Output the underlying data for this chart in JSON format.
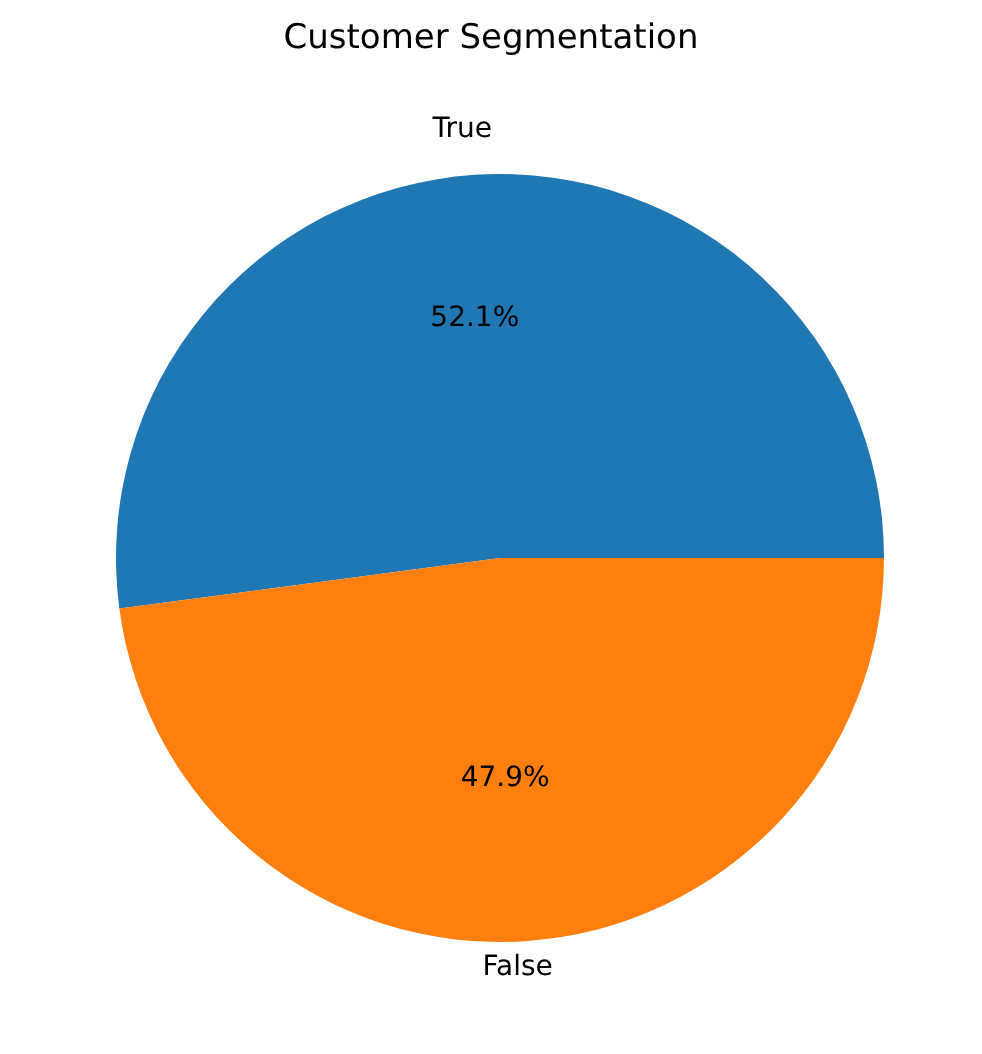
{
  "chart_data": {
    "type": "pie",
    "title": "Customer Segmentation",
    "categories": [
      "True",
      "False"
    ],
    "values": [
      52.1,
      47.9
    ],
    "colors": [
      "#1f77b4",
      "#ff7f0e"
    ],
    "value_labels": [
      "52.1%",
      "47.9%"
    ],
    "legend": false
  }
}
